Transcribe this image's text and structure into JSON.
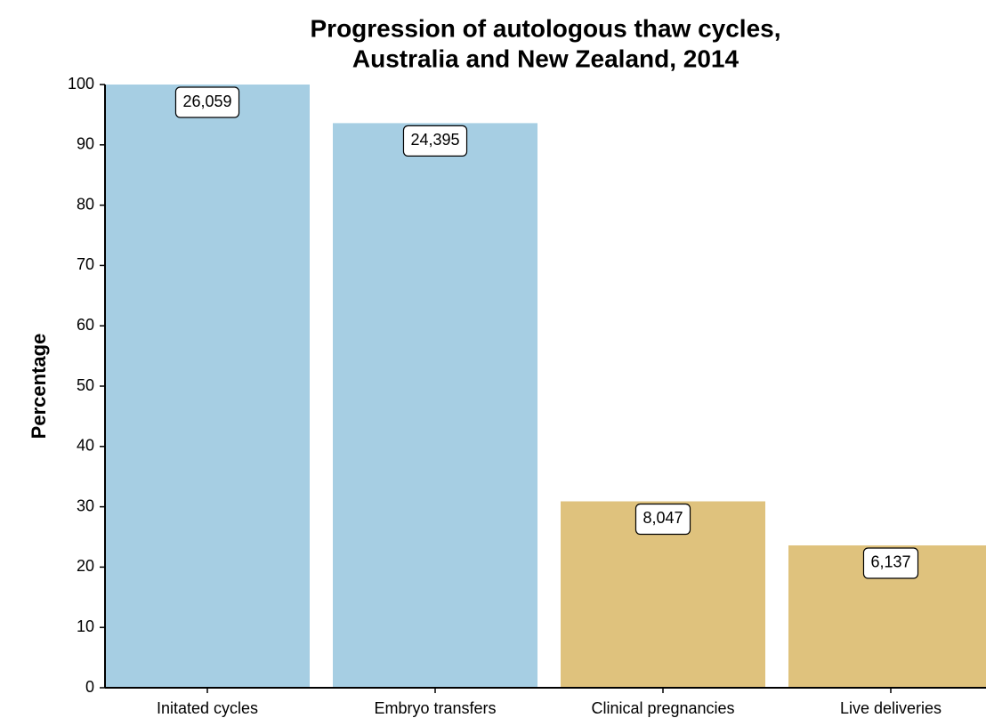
{
  "chart_data": {
    "type": "bar",
    "title": [
      "Progression of autologous thaw cycles,",
      "Australia and New Zealand, 2014"
    ],
    "y_label": "Percentage",
    "categories": [
      "Initated cycles",
      "Embryo transfers",
      "Clinical pregnancies",
      "Live deliveries"
    ],
    "values": [
      100,
      93.6,
      30.9,
      23.6
    ],
    "bar_labels": [
      "26,059",
      "24,395",
      "8,047",
      "6,137"
    ],
    "colors": [
      "#a6cee3",
      "#a6cee3",
      "#dfc27d",
      "#dfc27d"
    ],
    "ylim": [
      0,
      100
    ],
    "yticks": [
      0,
      10,
      20,
      30,
      40,
      50,
      60,
      70,
      80,
      90,
      100
    ],
    "grid": false
  }
}
